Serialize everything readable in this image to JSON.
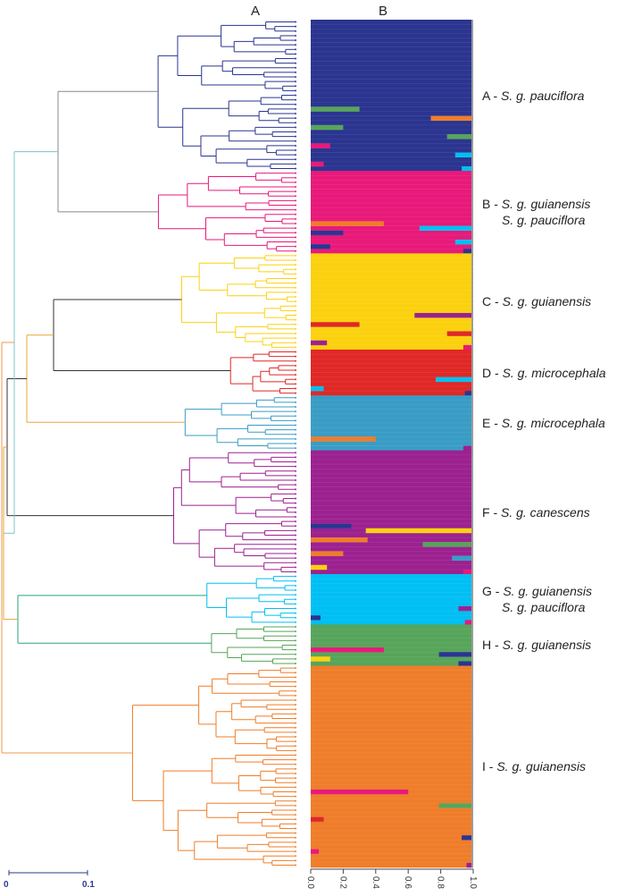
{
  "panels": {
    "a": "A",
    "b": "B"
  },
  "scale_bar": {
    "min_label": "0",
    "max_label": "0.1",
    "color": "#2e3a8c"
  },
  "chart_data": {
    "type": "bar",
    "subtype": "stacked-horizontal-admixture",
    "xlim": [
      0,
      1
    ],
    "xticks": [
      "0.0",
      "0.2",
      "0.4",
      "0.6",
      "0.8",
      "1.0"
    ],
    "clusters": [
      {
        "id": "A",
        "prefix": "A - ",
        "lines": [
          "S. g. pauciflora"
        ],
        "color": "#2b3590",
        "n": 33,
        "admixed": [
          [
            0.06,
            "#00bff3"
          ],
          [
            0.08,
            "#e8197a"
          ],
          [
            0.1,
            "#00bff3"
          ],
          [
            0.12,
            "#e8197a"
          ],
          [
            0.15,
            "#57a55a"
          ],
          [
            0.2,
            "#57a55a"
          ],
          [
            0.25,
            "#ef7d2a"
          ],
          [
            0.3,
            "#57a55a"
          ]
        ]
      },
      {
        "id": "B",
        "prefix": "B - ",
        "lines": [
          "S. g. guianensis",
          "S. g. pauciflora"
        ],
        "color": "#e8197a",
        "n": 18,
        "admixed": [
          [
            0.05,
            "#2b3590"
          ],
          [
            0.12,
            "#2b3590"
          ],
          [
            0.1,
            "#00bff3"
          ],
          [
            0.2,
            "#2b3590"
          ],
          [
            0.32,
            "#00bff3"
          ],
          [
            0.45,
            "#ef7d2a"
          ]
        ]
      },
      {
        "id": "C",
        "prefix": "C - ",
        "lines": [
          "S. g. guianensis"
        ],
        "color": "#fbd10f",
        "n": 21,
        "admixed": [
          [
            0.05,
            "#e8197a"
          ],
          [
            0.1,
            "#9c2190"
          ],
          [
            0.15,
            "#e02826"
          ],
          [
            0.3,
            "#e02826"
          ],
          [
            0.35,
            "#9c2190"
          ]
        ]
      },
      {
        "id": "D",
        "prefix": "D - ",
        "lines": [
          "S. g. microcephala"
        ],
        "color": "#e02826",
        "n": 10,
        "admixed": [
          [
            0.04,
            "#2b3590"
          ],
          [
            0.08,
            "#00bff3"
          ],
          [
            0.22,
            "#00bff3"
          ]
        ]
      },
      {
        "id": "E",
        "prefix": "E - ",
        "lines": [
          "S. g. microcephala"
        ],
        "color": "#3a9cc5",
        "n": 12,
        "admixed": [
          [
            0.05,
            "#9c2190"
          ],
          [
            0.4,
            "#ef7d2a"
          ]
        ]
      },
      {
        "id": "F",
        "prefix": "F - ",
        "lines": [
          "S. g. canescens"
        ],
        "color": "#9c2190",
        "n": 27,
        "admixed": [
          [
            0.05,
            "#e8197a"
          ],
          [
            0.1,
            "#fbd10f"
          ],
          [
            0.12,
            "#3a9cc5"
          ],
          [
            0.2,
            "#ef7d2a"
          ],
          [
            0.3,
            "#57a55a"
          ],
          [
            0.35,
            "#ef7d2a"
          ],
          [
            0.65,
            "#fbd10f"
          ],
          [
            0.25,
            "#2b3590"
          ]
        ]
      },
      {
        "id": "G",
        "prefix": "G - ",
        "lines": [
          "S. g. guianensis",
          "S. g. pauciflora"
        ],
        "color": "#00bff3",
        "n": 11,
        "admixed": [
          [
            0.04,
            "#e8197a"
          ],
          [
            0.06,
            "#2b3590"
          ],
          [
            0.08,
            "#9c2190"
          ]
        ]
      },
      {
        "id": "H",
        "prefix": "H - ",
        "lines": [
          "S. g. guianensis"
        ],
        "color": "#57a55a",
        "n": 9,
        "admixed": [
          [
            0.08,
            "#2b3590"
          ],
          [
            0.12,
            "#fbd10f"
          ],
          [
            0.2,
            "#2b3590"
          ],
          [
            0.45,
            "#e8197a"
          ]
        ]
      },
      {
        "id": "I",
        "prefix": "I - ",
        "lines": [
          "S. g. guianensis"
        ],
        "color": "#ef7d2a",
        "n": 44,
        "admixed": [
          [
            0.03,
            "#9c2190"
          ],
          [
            0.05,
            "#e8197a"
          ],
          [
            0.06,
            "#2b3590"
          ],
          [
            0.08,
            "#e02826"
          ],
          [
            0.2,
            "#57a55a"
          ],
          [
            0.6,
            "#e8197a"
          ]
        ]
      }
    ]
  }
}
